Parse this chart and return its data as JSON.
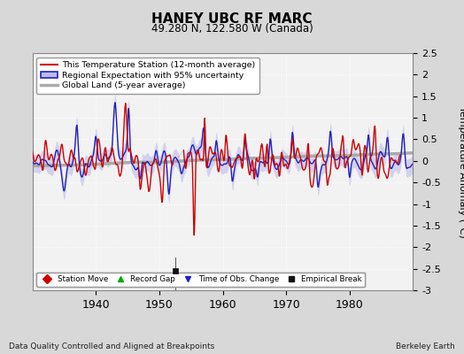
{
  "title": "HANEY UBC RF MARC",
  "subtitle": "49.280 N, 122.580 W (Canada)",
  "ylabel": "Temperature Anomaly (°C)",
  "xlabel_note": "Data Quality Controlled and Aligned at Breakpoints",
  "credit": "Berkeley Earth",
  "xlim": [
    1930,
    1990
  ],
  "ylim": [
    -3,
    2.5
  ],
  "yticks": [
    -3,
    -2.5,
    -2,
    -1.5,
    -1,
    -0.5,
    0,
    0.5,
    1,
    1.5,
    2,
    2.5
  ],
  "xticks": [
    1940,
    1950,
    1960,
    1970,
    1980
  ],
  "empirical_break_x": 1952.5,
  "empirical_break_y": -2.55,
  "bg_color": "#d8d8d8",
  "plot_bg_color": "#f2f2f2",
  "red_color": "#cc0000",
  "blue_color": "#2222bb",
  "blue_fill_color": "#bbbbee",
  "gray_color": "#aaaaaa",
  "legend_items": [
    {
      "label": "This Temperature Station (12-month average)",
      "color": "#cc0000",
      "lw": 1.5
    },
    {
      "label": "Regional Expectation with 95% uncertainty",
      "color": "#2222bb",
      "lw": 1.5
    },
    {
      "label": "Global Land (5-year average)",
      "color": "#aaaaaa",
      "lw": 2.5
    }
  ],
  "marker_legend": [
    {
      "label": "Station Move",
      "marker": "D",
      "color": "#cc0000"
    },
    {
      "label": "Record Gap",
      "marker": "^",
      "color": "#00aa00"
    },
    {
      "label": "Time of Obs. Change",
      "marker": "v",
      "color": "#2222bb"
    },
    {
      "label": "Empirical Break",
      "marker": "s",
      "color": "#111111"
    }
  ],
  "seed": 42
}
